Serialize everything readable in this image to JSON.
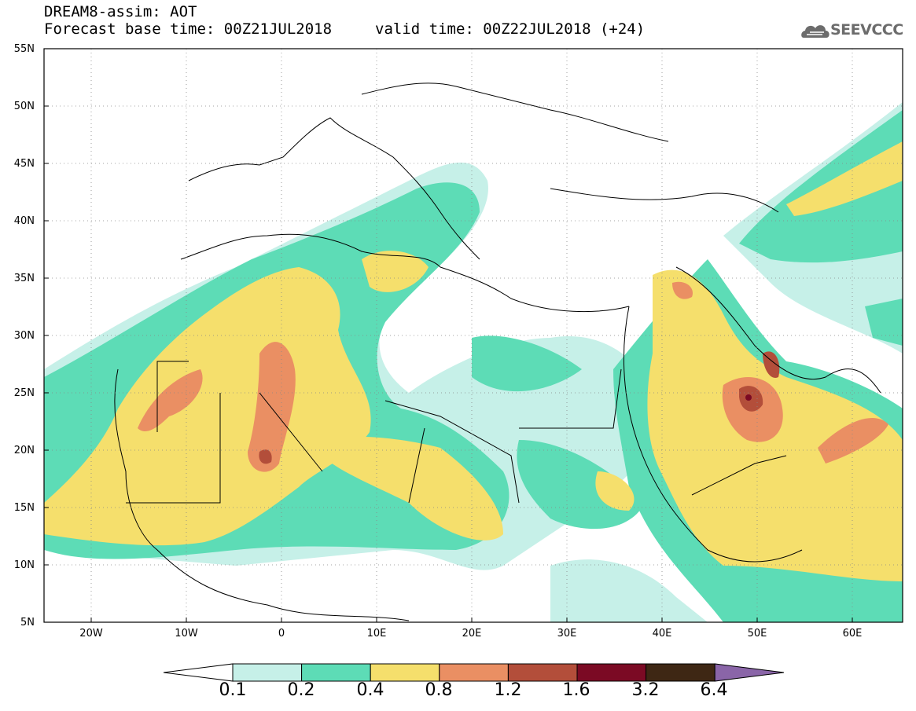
{
  "header": {
    "title_line1": "DREAM8-assim: AOT",
    "title_line2": "Forecast base time: 00Z21JUL2018",
    "valid_time": "valid time: 00Z22JUL2018 (+24)"
  },
  "logo": {
    "text": "SEEVCCC",
    "icon": "cloud-logo-icon"
  },
  "map": {
    "lat_labels": [
      "55N",
      "50N",
      "45N",
      "40N",
      "35N",
      "30N",
      "25N",
      "20N",
      "15N",
      "10N",
      "5N"
    ],
    "lon_labels": [
      "20W",
      "10W",
      "0",
      "10E",
      "20E",
      "30E",
      "40E",
      "50E",
      "60E"
    ],
    "lon_range": [
      -25,
      65
    ],
    "lat_range": [
      5,
      55
    ]
  },
  "legend": {
    "labels": [
      "0.1",
      "0.2",
      "0.4",
      "0.8",
      "1.2",
      "1.6",
      "3.2",
      "6.4"
    ],
    "colors": [
      "#c6f0e8",
      "#5ddcb6",
      "#f5df6c",
      "#ea8f63",
      "#b34e3a",
      "#7b0a24",
      "#3e2714",
      "#8a65a8"
    ]
  }
}
